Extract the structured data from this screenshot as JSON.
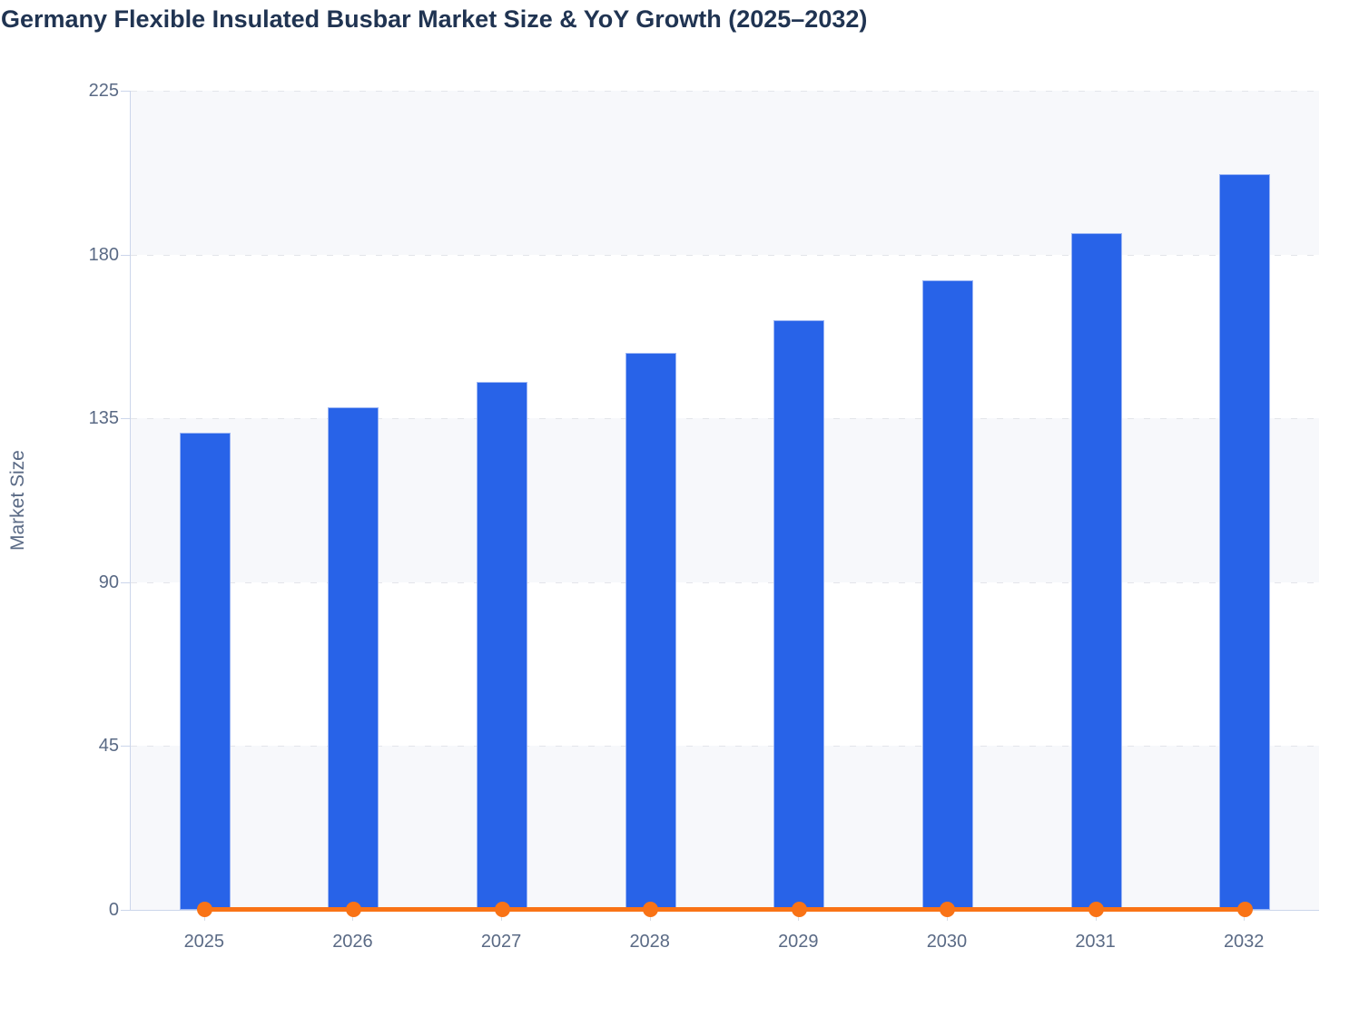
{
  "page": {
    "title": "Germany Flexible Insulated Busbar Market Size & YoY Growth (2025–2032)"
  },
  "chart_data": {
    "type": "bar",
    "subtype": "bar-with-flat-line-overlay",
    "title": "Germany Flexible Insulated Busbar Market Size & YoY Growth (2025–2032)",
    "xlabel": "",
    "ylabel": "Market Size",
    "categories": [
      "2025",
      "2026",
      "2027",
      "2028",
      "2029",
      "2030",
      "2031",
      "2032"
    ],
    "series": [
      {
        "name": "Market Size",
        "type": "bar",
        "color": "#2863e8",
        "values": [
          131,
          138,
          145,
          153,
          162,
          173,
          186,
          202
        ]
      },
      {
        "name": "YoY Growth",
        "type": "line",
        "color": "#f97316",
        "marker": "circle",
        "values": [
          0,
          0,
          0,
          0,
          0,
          0,
          0,
          0
        ]
      }
    ],
    "y_ticks": [
      0,
      45,
      90,
      135,
      180,
      225
    ],
    "ylim": [
      0,
      225
    ],
    "grid": "horizontal dashed gridlines with alternating light band fills",
    "legend": "none",
    "colors": {
      "bar": "#2863e8",
      "line": "#f97316",
      "title_text": "#203452",
      "axis_label_text": "#5a6a85",
      "axis_line": "#ccd6eb",
      "band_fill": "#f7f8fb"
    }
  }
}
